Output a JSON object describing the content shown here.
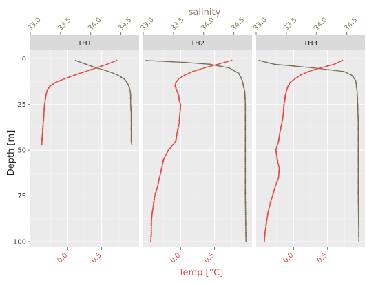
{
  "chart_data": {
    "type": "line",
    "facet_by": "station",
    "panels": [
      "TH1",
      "TH2",
      "TH3"
    ],
    "xlabel_top": "salinity",
    "xlabel_bottom": "Temp [°C]",
    "ylabel": "Depth [m]",
    "y_reversed": true,
    "ylim": [
      -5,
      103
    ],
    "yticks": [
      0,
      25,
      50,
      75,
      100
    ],
    "temp_lim": [
      -0.55,
      1.05
    ],
    "temp_ticks": [
      0.0,
      0.5
    ],
    "temp_tick_labels": [
      "0.0",
      "0.5"
    ],
    "sal_lim": [
      33.0,
      34.8
    ],
    "sal_ticks": [
      33.0,
      33.5,
      34.0,
      34.5
    ],
    "sal_tick_labels": [
      "33.0",
      "33.5",
      "34.0",
      "34.5"
    ],
    "grid": true,
    "colors": {
      "temp": "#e8463f",
      "salinity": "#7b6d56",
      "panel_bg": "#ebebeb",
      "strip_bg": "#d9d9d9",
      "grid_major": "#ffffff",
      "grid_minor": "#f5f5f5"
    },
    "series": [
      {
        "panel": "TH1",
        "temp": {
          "depth": [
            1,
            3,
            5,
            7,
            9,
            11,
            13,
            15,
            17,
            20,
            25,
            30,
            35,
            40,
            45,
            47
          ],
          "value": [
            0.72,
            0.58,
            0.42,
            0.26,
            0.1,
            -0.05,
            -0.18,
            -0.26,
            -0.3,
            -0.32,
            -0.34,
            -0.35,
            -0.36,
            -0.37,
            -0.38,
            -0.38
          ]
        },
        "salinity": {
          "depth": [
            1,
            3,
            5,
            7,
            9,
            11,
            13,
            15,
            17,
            20,
            25,
            30,
            35,
            40,
            45,
            47
          ],
          "value": [
            33.75,
            33.92,
            34.1,
            34.3,
            34.45,
            34.55,
            34.6,
            34.63,
            34.65,
            34.66,
            34.66,
            34.67,
            34.67,
            34.67,
            34.67,
            34.68
          ]
        }
      },
      {
        "panel": "TH2",
        "temp": {
          "depth": [
            1,
            3,
            5,
            7,
            9,
            11,
            13,
            15,
            17,
            20,
            23,
            25,
            30,
            35,
            40,
            45,
            50,
            55,
            60,
            65,
            70,
            75,
            80,
            85,
            90,
            95,
            100
          ],
          "value": [
            0.75,
            0.55,
            0.35,
            0.18,
            0.06,
            -0.03,
            -0.07,
            -0.08,
            -0.06,
            -0.03,
            -0.02,
            0.0,
            -0.01,
            -0.02,
            -0.05,
            -0.07,
            -0.18,
            -0.25,
            -0.28,
            -0.31,
            -0.34,
            -0.38,
            -0.4,
            -0.42,
            -0.43,
            -0.43,
            -0.44
          ]
        },
        "salinity": {
          "depth": [
            1,
            2,
            3,
            5,
            8,
            12,
            18,
            25,
            35,
            50,
            75,
            100
          ],
          "value": [
            33.05,
            33.7,
            34.1,
            34.42,
            34.58,
            34.64,
            34.68,
            34.69,
            34.69,
            34.69,
            34.69,
            34.7
          ]
        }
      },
      {
        "panel": "TH3",
        "temp": {
          "depth": [
            1,
            3,
            5,
            7,
            9,
            11,
            13,
            15,
            17,
            20,
            23,
            25,
            30,
            35,
            40,
            45,
            50,
            55,
            60,
            65,
            70,
            75,
            80,
            85,
            90,
            95,
            100
          ],
          "value": [
            0.72,
            0.6,
            0.4,
            0.22,
            0.1,
            0.02,
            -0.05,
            -0.08,
            -0.1,
            -0.12,
            -0.13,
            -0.14,
            -0.15,
            -0.17,
            -0.2,
            -0.22,
            -0.26,
            -0.24,
            -0.21,
            -0.22,
            -0.27,
            -0.31,
            -0.35,
            -0.38,
            -0.4,
            -0.42,
            -0.43
          ]
        },
        "salinity": {
          "depth": [
            1,
            3,
            5,
            7,
            9,
            12,
            18,
            25,
            35,
            50,
            75,
            100
          ],
          "value": [
            33.05,
            33.3,
            33.95,
            34.45,
            34.58,
            34.65,
            34.67,
            34.68,
            34.69,
            34.69,
            34.69,
            34.7
          ]
        }
      }
    ]
  }
}
